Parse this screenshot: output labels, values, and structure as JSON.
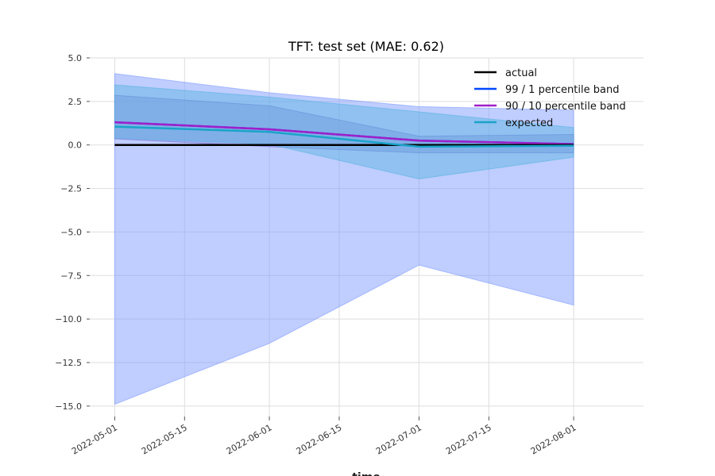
{
  "chart_data": {
    "type": "line",
    "title": "TFT: test set (MAE: 0.62)",
    "xlabel": "time",
    "ylabel": "",
    "x": [
      "2022-05-01",
      "2022-06-01",
      "2022-07-01",
      "2022-08-01"
    ],
    "xticks": [
      "2022-05-01",
      "2022-05-15",
      "2022-06-01",
      "2022-06-15",
      "2022-07-01",
      "2022-07-15",
      "2022-08-01"
    ],
    "yticks": [
      5.0,
      2.5,
      0.0,
      -2.5,
      -5.0,
      -7.5,
      -10.0,
      -12.5,
      -15.0
    ],
    "ytick_labels": [
      "5.0",
      "2.5",
      "0.0",
      "−2.5",
      "−5.0",
      "−7.5",
      "−10.0",
      "−12.5",
      "−15.0"
    ],
    "xlim": [
      "2022-04-26",
      "2022-08-15"
    ],
    "ylim": [
      -15.6,
      5.0
    ],
    "grid": true,
    "legend_position": "top-right",
    "series": [
      {
        "name": "actual",
        "color": "#000000",
        "values": [
          0.0,
          0.0,
          0.0,
          0.0
        ]
      },
      {
        "name": "expected",
        "color": "#1aa3c8",
        "values": [
          1.05,
          0.75,
          -0.1,
          -0.05
        ]
      }
    ],
    "bands": [
      {
        "name": "99 / 1 percentile band",
        "color": "#0047ff",
        "fill": "#809bff",
        "lower": [
          -14.9,
          -11.4,
          -6.9,
          -9.2
        ],
        "upper": [
          4.1,
          3.0,
          2.2,
          2.0
        ],
        "median": [
          1.3,
          0.9,
          0.25,
          0.05
        ]
      },
      {
        "name": "90 / 10 percentile band",
        "color": "#a020c8",
        "fill": "#7070d0",
        "lower": [
          0.35,
          -0.1,
          -0.45,
          -0.45
        ],
        "upper": [
          2.85,
          2.25,
          0.5,
          0.6
        ],
        "median": [
          1.3,
          0.9,
          0.25,
          0.05
        ]
      },
      {
        "name": "expected band",
        "color": "#1aa3c8",
        "fill": "#56b4e0",
        "lower": [
          0.4,
          0.05,
          -1.95,
          -0.7
        ],
        "upper": [
          3.45,
          2.75,
          1.9,
          1.0
        ]
      }
    ],
    "legend": [
      "actual",
      "99 / 1 percentile band",
      "90 / 10 percentile band",
      "expected"
    ]
  }
}
